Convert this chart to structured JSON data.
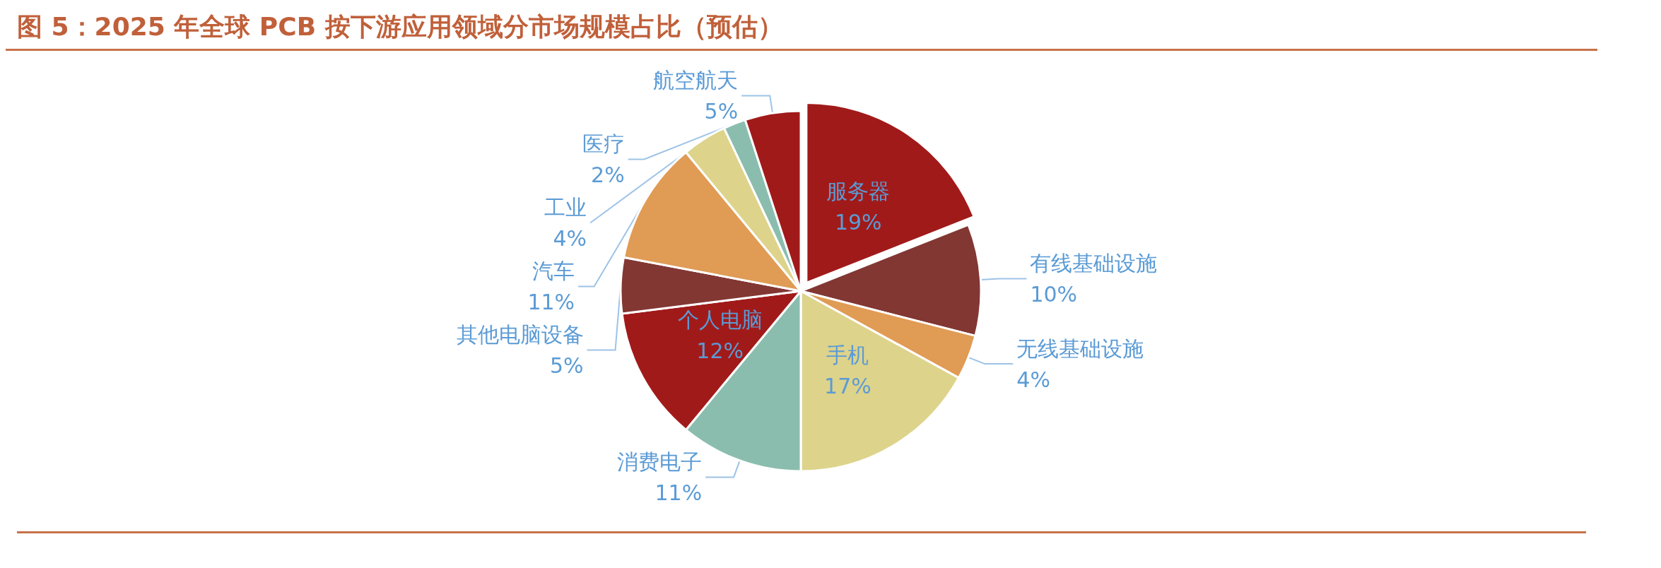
{
  "chart_data": {
    "type": "pie",
    "title": "图 5：2025 年全球 PCB 按下游应用领域分市场规模占比（预估）",
    "categories": [
      "服务器",
      "有线基础设施",
      "无线基础设施",
      "手机",
      "消费电子",
      "个人电脑",
      "其他电脑设备",
      "汽车",
      "工业",
      "医疗",
      "航空航天"
    ],
    "values": [
      19,
      10,
      4,
      17,
      11,
      12,
      5,
      11,
      4,
      2,
      5
    ],
    "colors": [
      "#a11a1a",
      "#823733",
      "#e09b55",
      "#ddd38b",
      "#8bbdae",
      "#a11a1a",
      "#823733",
      "#e09b55",
      "#ddd38b",
      "#8bbdae",
      "#a11a1a"
    ],
    "value_labels": [
      "19%",
      "10%",
      "4%",
      "17%",
      "11%",
      "12%",
      "5%",
      "11%",
      "4%",
      "2%",
      "5%"
    ],
    "legend": false
  }
}
